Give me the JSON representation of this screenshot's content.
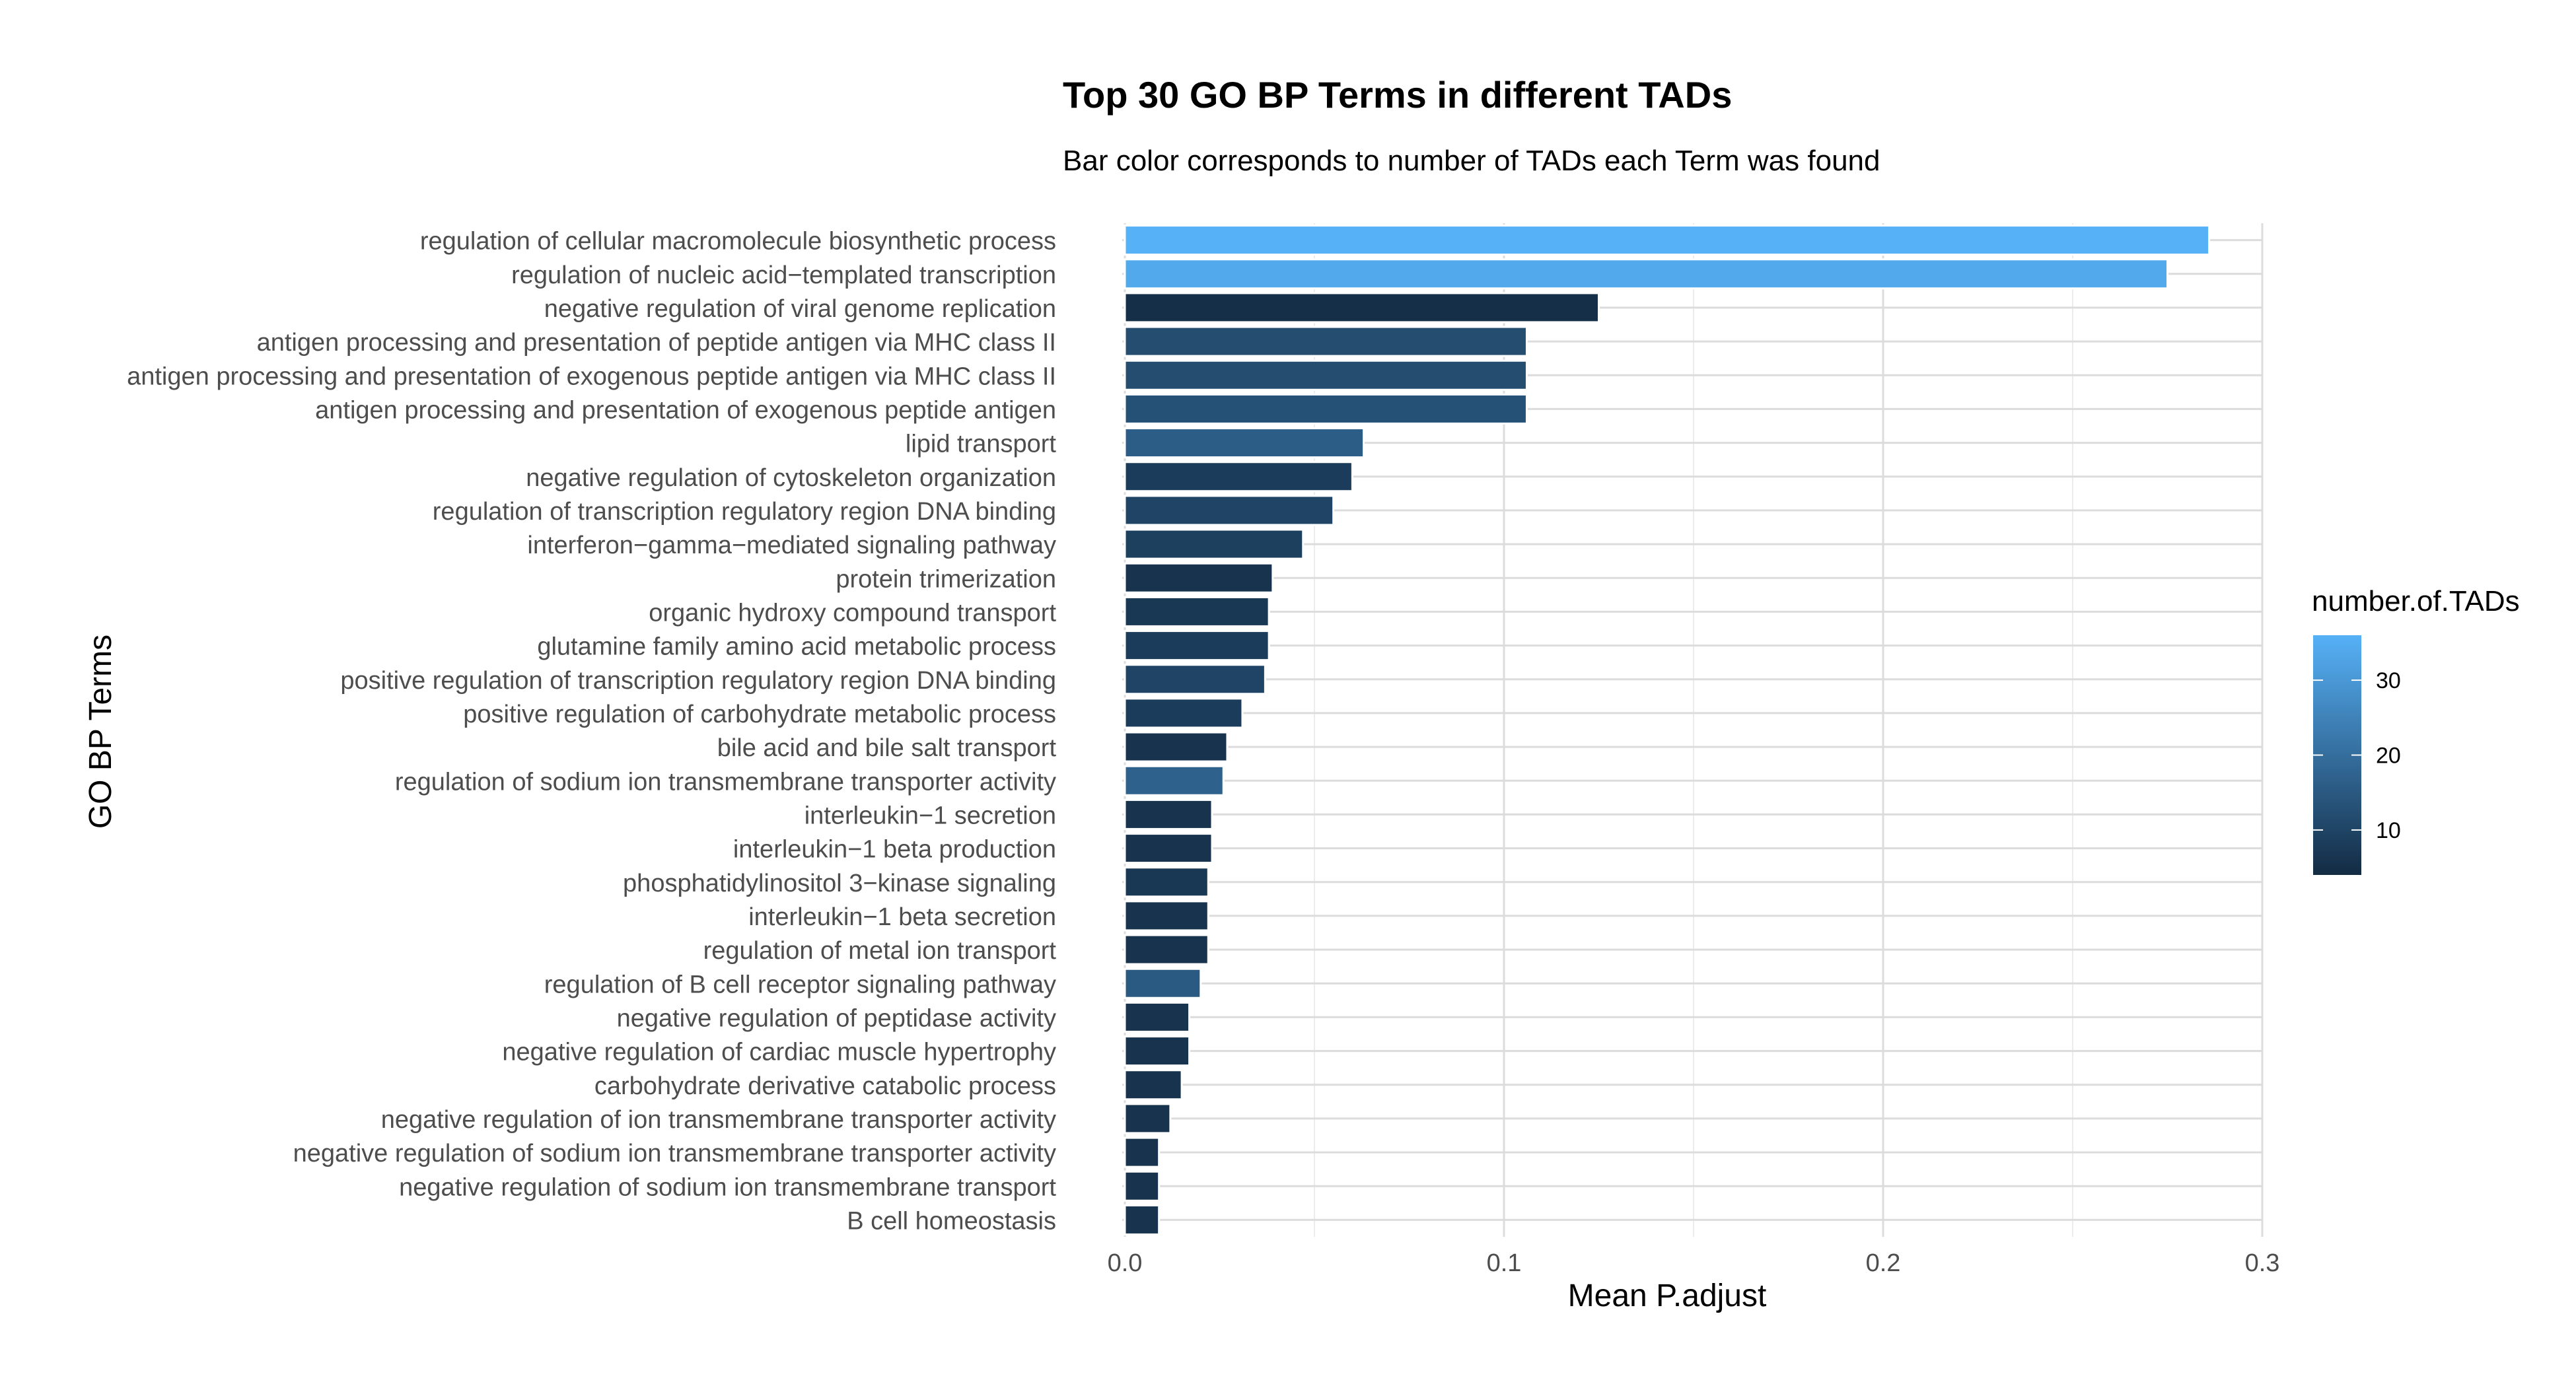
{
  "chart_data": {
    "type": "bar",
    "orientation": "horizontal",
    "title": "Top 30 GO BP Terms in different TADs",
    "subtitle": "Bar color corresponds to number of TADs each Term was found",
    "xlabel": "Mean P.adjust",
    "ylabel": "GO BP Terms",
    "xlim": [
      0,
      0.3
    ],
    "x_ticks": [
      "0.0",
      "0.1",
      "0.2",
      "0.3"
    ],
    "grid": true,
    "categories": [
      "regulation of cellular macromolecule biosynthetic process",
      "regulation of nucleic acid−templated transcription",
      "negative regulation of viral genome replication",
      "antigen processing and presentation of peptide antigen via MHC class II",
      "antigen processing and presentation of exogenous peptide antigen via MHC class II",
      "antigen processing and presentation of exogenous peptide antigen",
      "lipid transport",
      "negative regulation of cytoskeleton organization",
      "regulation of transcription regulatory region DNA binding",
      "interferon−gamma−mediated signaling pathway",
      "protein trimerization",
      "organic hydroxy compound transport",
      "glutamine family amino acid metabolic process",
      "positive regulation of transcription regulatory region DNA binding",
      "positive regulation of carbohydrate metabolic process",
      "bile acid and bile salt transport",
      "regulation of sodium ion transmembrane transporter activity",
      "interleukin−1 secretion",
      "interleukin−1 beta production",
      "phosphatidylinositol 3−kinase signaling",
      "interleukin−1 beta secretion",
      "regulation of metal ion transport",
      "regulation of B cell receptor signaling pathway",
      "negative regulation of peptidase activity",
      "negative regulation of cardiac muscle hypertrophy",
      "carbohydrate derivative catabolic process",
      "negative regulation of ion transmembrane transporter activity",
      "negative regulation of sodium ion transmembrane transporter activity",
      "negative regulation of sodium ion transmembrane transport",
      "B cell homeostasis"
    ],
    "values": [
      0.286,
      0.275,
      0.125,
      0.106,
      0.106,
      0.106,
      0.063,
      0.06,
      0.055,
      0.047,
      0.039,
      0.038,
      0.038,
      0.037,
      0.031,
      0.027,
      0.026,
      0.023,
      0.023,
      0.022,
      0.022,
      0.022,
      0.02,
      0.017,
      0.017,
      0.015,
      0.012,
      0.009,
      0.009,
      0.009
    ],
    "color_values": [
      36,
      34,
      5,
      12,
      12,
      13,
      16,
      8,
      10,
      9,
      6,
      7,
      8,
      10,
      8,
      6,
      17,
      6,
      6,
      7,
      6,
      6,
      15,
      6,
      6,
      6,
      6,
      6,
      6,
      6
    ],
    "legend": {
      "title": "number.of.TADs",
      "position": "right",
      "range": [
        4,
        36
      ],
      "ticks": [
        "10",
        "20",
        "30"
      ],
      "low_color": "#132B43",
      "high_color": "#56B1F7"
    }
  }
}
